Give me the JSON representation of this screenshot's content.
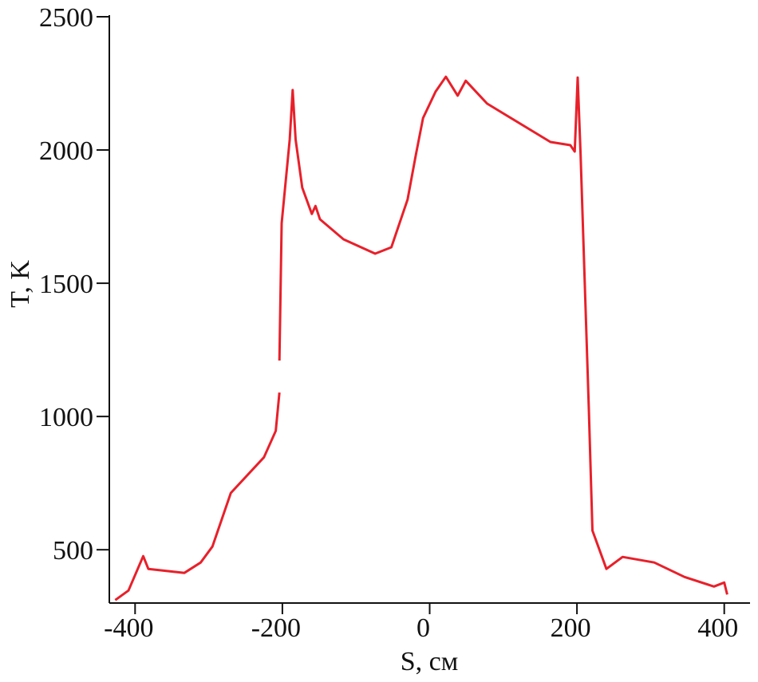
{
  "chart_data": {
    "type": "line",
    "x_label": "S, см",
    "y_label": "T, K",
    "x": [
      -427,
      -409,
      -389,
      -382,
      -333,
      -311,
      -295,
      -270,
      -225,
      -209,
      -204,
      null,
      -204,
      -201,
      -190,
      -186,
      -182,
      -173,
      -160,
      -155,
      -149,
      -117,
      -74,
      -52,
      -30,
      -19,
      -9,
      8,
      22,
      38,
      49,
      78,
      164,
      191,
      197,
      201,
      205,
      216,
      221,
      240,
      262,
      305,
      346,
      386,
      400,
      404
    ],
    "values": [
      311,
      347,
      476,
      428,
      413,
      452,
      512,
      713,
      847,
      946,
      1090,
      null,
      1210,
      1725,
      2039,
      2225,
      2039,
      1859,
      1760,
      1790,
      1740,
      1665,
      1611,
      1635,
      1814,
      1979,
      2120,
      2219,
      2275,
      2204,
      2260,
      2174,
      2030,
      2018,
      1994,
      2272,
      1979,
      1036,
      572,
      428,
      473,
      452,
      398,
      362,
      377,
      332
    ],
    "color": "#e8202a",
    "xlim": [
      -435,
      435
    ],
    "xticks": [
      -400,
      -200,
      0,
      200,
      400
    ],
    "ylim": [
      300,
      2500
    ],
    "yticks": [
      500,
      1000,
      1500,
      2000,
      2500
    ]
  }
}
